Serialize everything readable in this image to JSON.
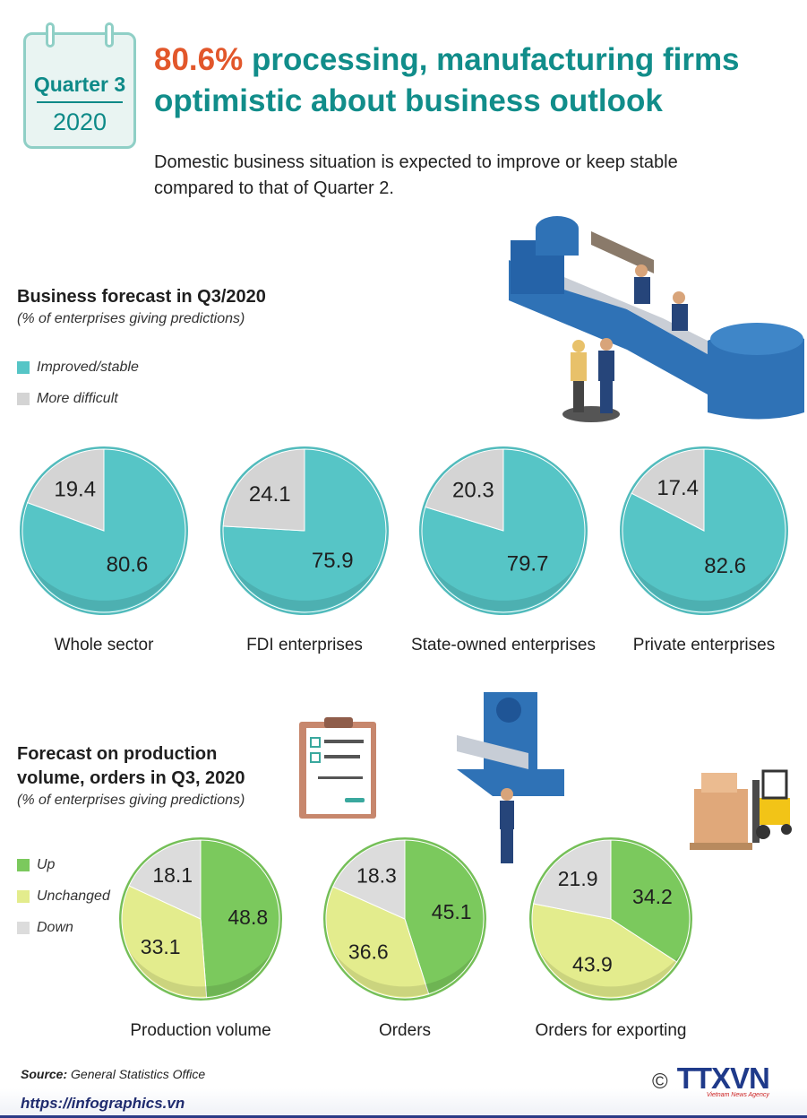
{
  "calendar": {
    "quarter": "Quarter 3",
    "year": "2020"
  },
  "headline": {
    "highlight": "80.6%",
    "rest": " processing, manufacturing firms optimistic about business outlook"
  },
  "subtitle": "Domestic business situation is expected to improve or keep stable compared to that of Quarter 2.",
  "section1": {
    "title": "Business forecast in Q3/2020",
    "note": "(% of enterprises giving predictions)",
    "legend": [
      "Improved/stable",
      "More difficult"
    ]
  },
  "section2": {
    "title_line1": "Forecast on production",
    "title_line2": "volume, orders in Q3, 2020",
    "note": "(% of enterprises giving predictions)",
    "legend": [
      "Up",
      "Unchanged",
      "Down"
    ]
  },
  "colors": {
    "improved": "#56c5c6",
    "difficult": "#d4d4d4",
    "up": "#7bc95d",
    "unchanged": "#e3ec8d",
    "down": "#dcdcdc",
    "title_teal": "#118d8a",
    "title_orange": "#e2572b"
  },
  "chart_data": [
    {
      "type": "pie",
      "title": "Business forecast in Q3/2020",
      "series_names": [
        "Improved/stable",
        "More difficult"
      ],
      "pies": [
        {
          "label": "Whole sector",
          "values": [
            80.6,
            19.4
          ]
        },
        {
          "label": "FDI enterprises",
          "values": [
            75.9,
            24.1
          ]
        },
        {
          "label": "State-owned enterprises",
          "values": [
            79.7,
            20.3
          ]
        },
        {
          "label": "Private enterprises",
          "values": [
            82.6,
            17.4
          ]
        }
      ]
    },
    {
      "type": "pie",
      "title": "Forecast on production volume, orders in Q3, 2020",
      "series_names": [
        "Up",
        "Unchanged",
        "Down"
      ],
      "pies": [
        {
          "label": "Production volume",
          "values": [
            48.8,
            33.1,
            18.1
          ]
        },
        {
          "label": "Orders",
          "values": [
            45.1,
            36.6,
            18.3
          ]
        },
        {
          "label": "Orders for exporting",
          "values": [
            34.2,
            43.9,
            21.9
          ]
        }
      ]
    }
  ],
  "source": {
    "label": "Source:",
    "text": " General Statistics Office"
  },
  "url": "https://infographics.vn",
  "logo": {
    "copyright": "©",
    "name": "TTXVN",
    "sub": "Vietnam News Agency"
  }
}
